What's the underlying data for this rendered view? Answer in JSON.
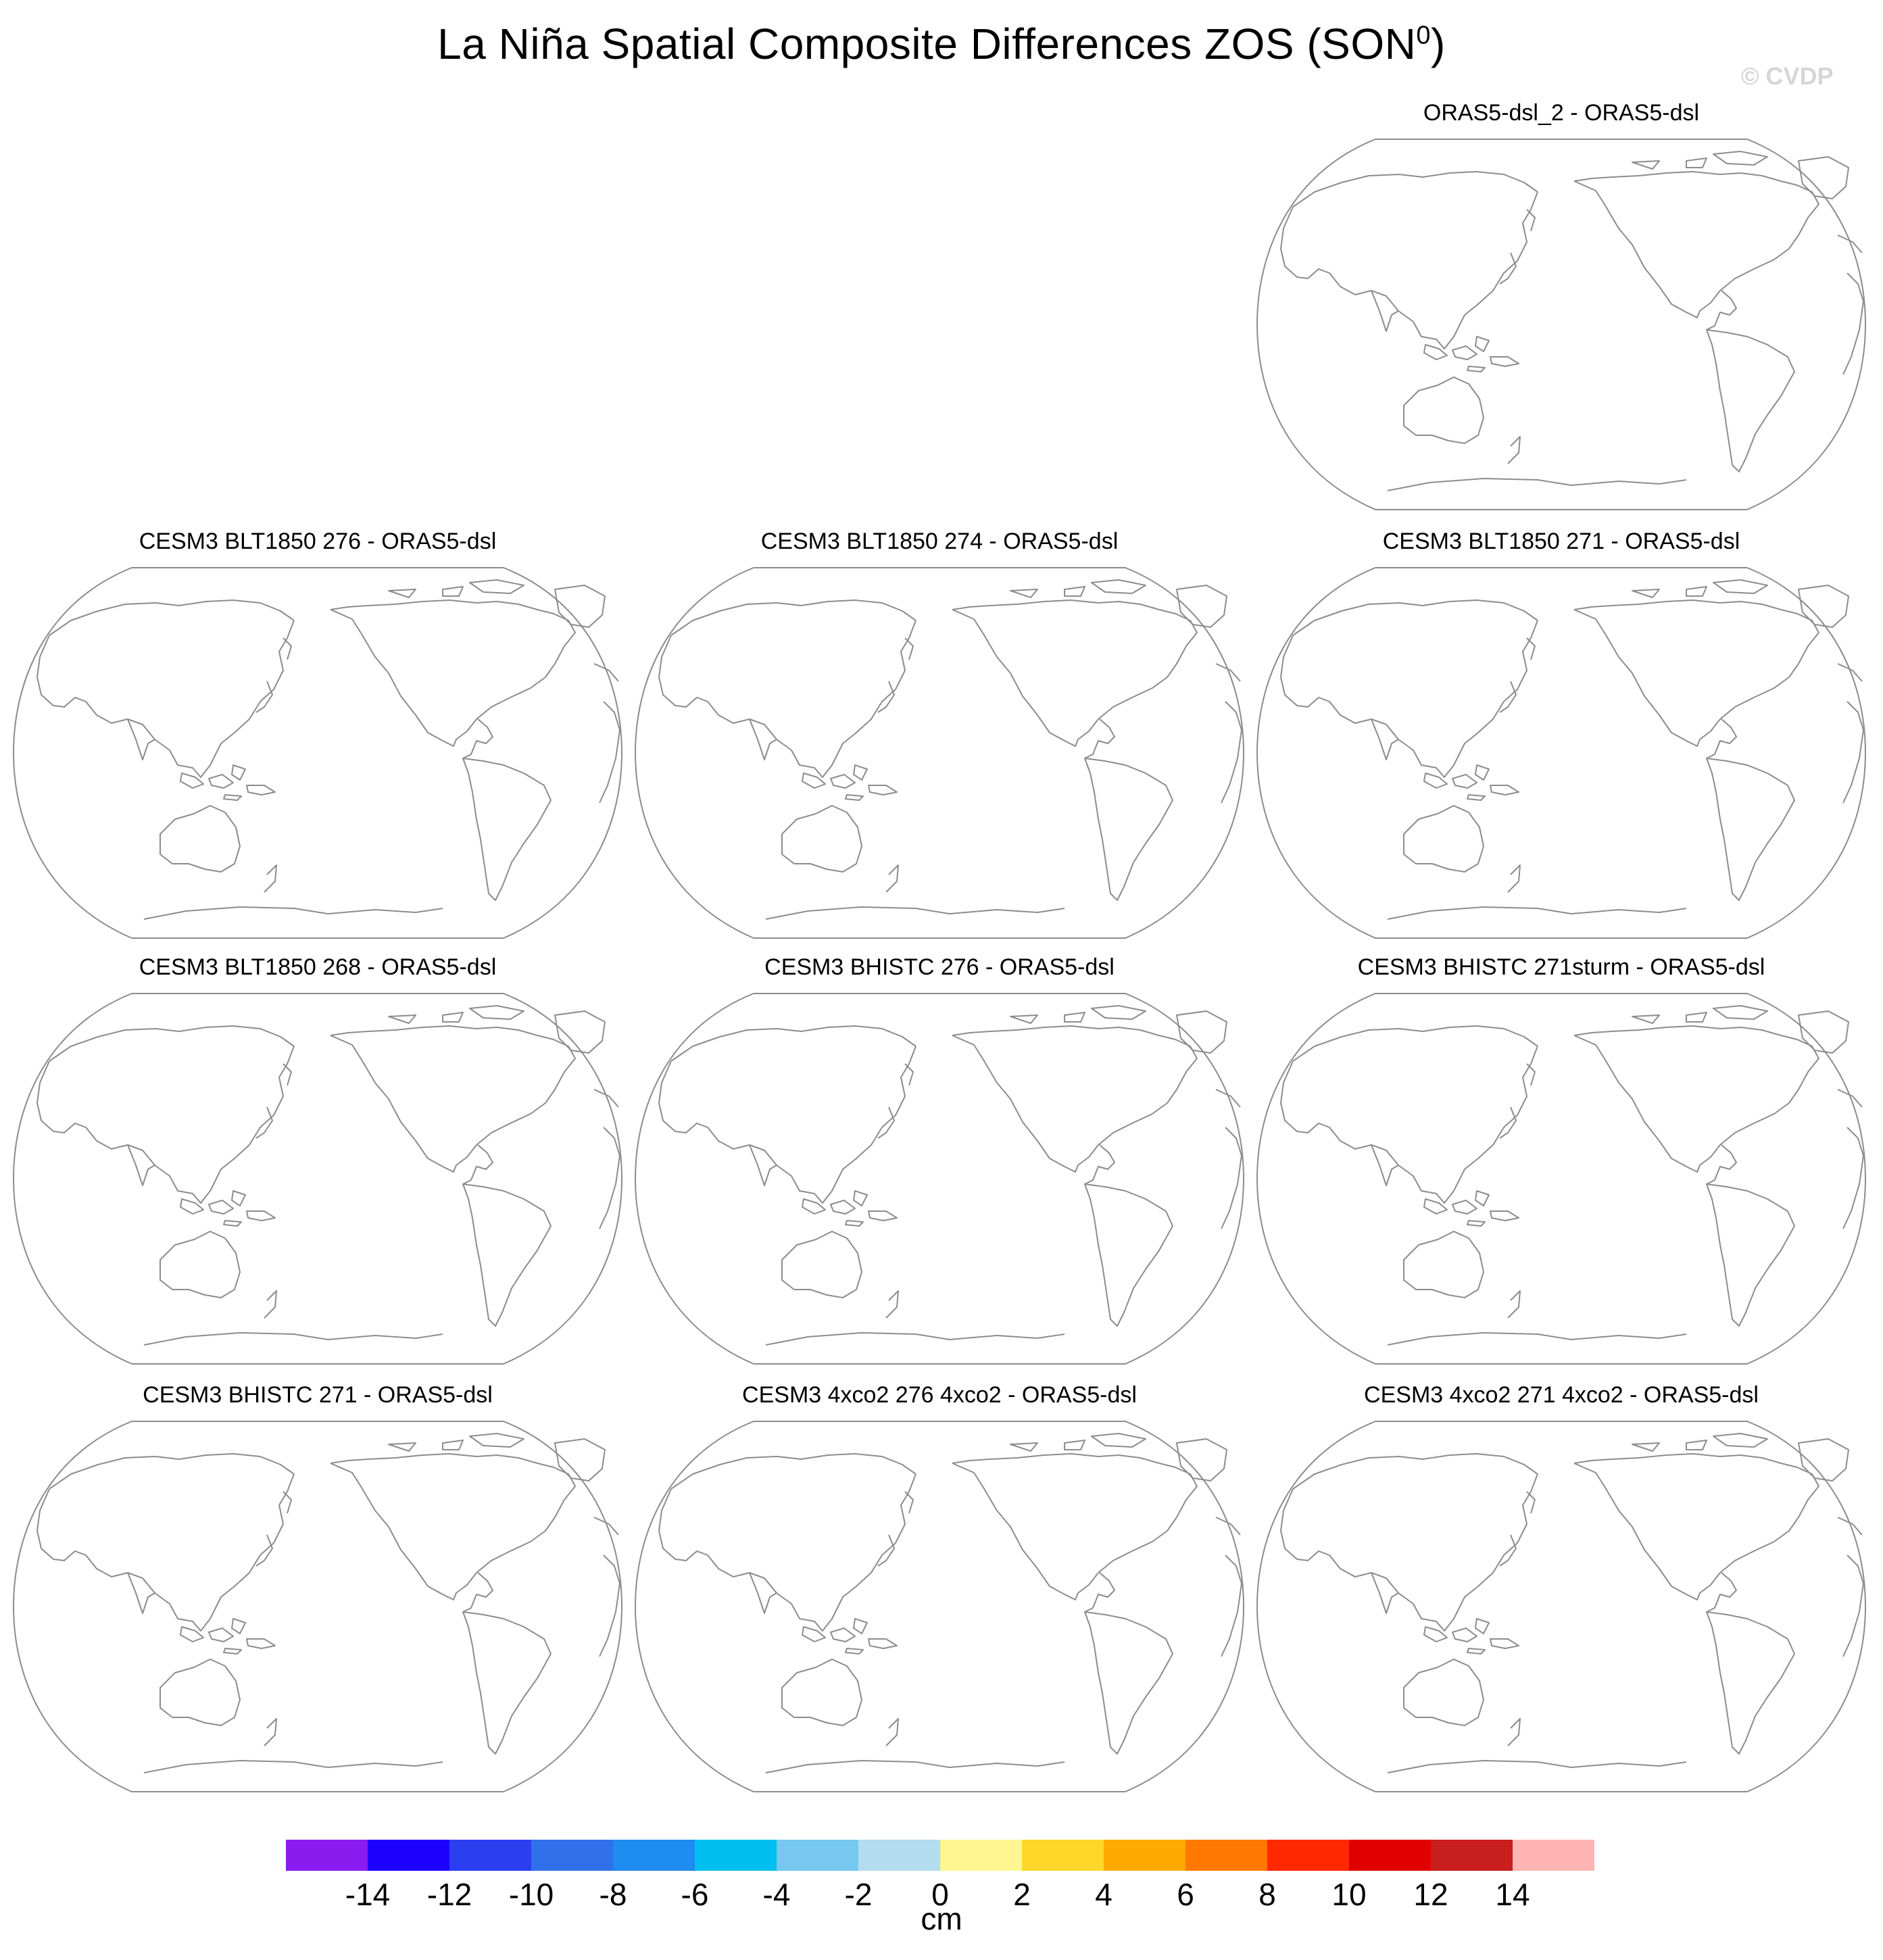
{
  "title": {
    "text": "La Niña Spatial Composite Differences ZOS (SON",
    "superscript": "0",
    "close": ")"
  },
  "watermark": "© CVDP",
  "panels": [
    {
      "title": "ORAS5-dsl_2 - ORAS5-dsl"
    },
    {
      "title": "CESM3 BLT1850 276 - ORAS5-dsl"
    },
    {
      "title": "CESM3 BLT1850 274 - ORAS5-dsl"
    },
    {
      "title": "CESM3 BLT1850 271 - ORAS5-dsl"
    },
    {
      "title": "CESM3 BLT1850 268 - ORAS5-dsl"
    },
    {
      "title": "CESM3 BHISTC 276 - ORAS5-dsl"
    },
    {
      "title": "CESM3 BHISTC 271sturm - ORAS5-dsl"
    },
    {
      "title": "CESM3 BHISTC 271 - ORAS5-dsl"
    },
    {
      "title": "CESM3 4xco2 276 4xco2 - ORAS5-dsl"
    },
    {
      "title": "CESM3 4xco2 271 4xco2 - ORAS5-dsl"
    }
  ],
  "colorbar": {
    "units": "cm",
    "colors": [
      "#8b1cf0",
      "#1e00ff",
      "#2b3ff0",
      "#3070eb",
      "#1e8cf0",
      "#00bef0",
      "#76c8f0",
      "#b4dcf0",
      "#fff591",
      "#ffd72a",
      "#ffaa00",
      "#ff7800",
      "#ff2800",
      "#e10000",
      "#c81e1e",
      "#ffb4b4"
    ],
    "tick_labels": [
      "-14",
      "-12",
      "-10",
      "-8",
      "-6",
      "-4",
      "-2",
      "0",
      "2",
      "4",
      "6",
      "8",
      "10",
      "12",
      "14"
    ]
  }
}
